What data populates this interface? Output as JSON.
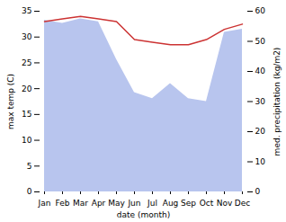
{
  "chart_data": {
    "type": "line",
    "xlabel": "date (month)",
    "ylabel": "max temp (C)",
    "y2label": "med. precipitation (kg/m2)",
    "categories": [
      "Jan",
      "Feb",
      "Mar",
      "Apr",
      "May",
      "Jun",
      "Jul",
      "Aug",
      "Sep",
      "Oct",
      "Nov",
      "Dec"
    ],
    "ylim": [
      0,
      35
    ],
    "yticks": [
      0,
      5,
      10,
      15,
      20,
      25,
      30,
      35
    ],
    "y2lim": [
      0,
      60
    ],
    "y2ticks": [
      0,
      10,
      20,
      30,
      40,
      50,
      60
    ],
    "series": [
      {
        "type": "area",
        "axis": "y2",
        "color": "#b8c5ee",
        "values": [
          57.0,
          56.0,
          57.5,
          56.5,
          44.0,
          33.0,
          31.0,
          36.0,
          31.0,
          30.0,
          53.0,
          54.0
        ]
      },
      {
        "type": "line",
        "color": "#cc3333",
        "values": [
          33.0,
          33.5,
          34.0,
          33.5,
          33.0,
          29.5,
          29.0,
          28.5,
          28.5,
          29.5,
          31.5,
          32.5
        ]
      }
    ]
  }
}
